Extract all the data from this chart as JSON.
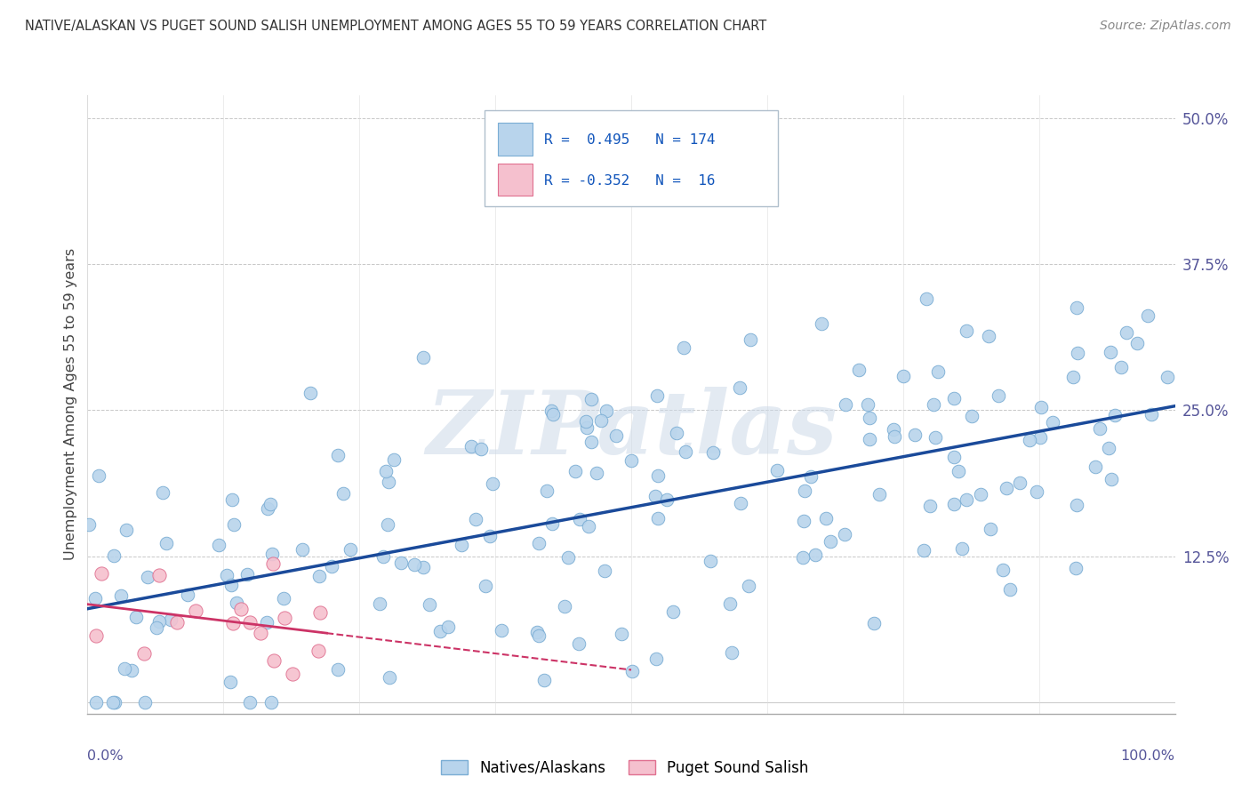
{
  "title": "NATIVE/ALASKAN VS PUGET SOUND SALISH UNEMPLOYMENT AMONG AGES 55 TO 59 YEARS CORRELATION CHART",
  "source": "Source: ZipAtlas.com",
  "ylabel": "Unemployment Among Ages 55 to 59 years",
  "xlim": [
    0.0,
    1.0
  ],
  "ylim": [
    -0.01,
    0.52
  ],
  "blue_R": 0.495,
  "blue_N": 174,
  "pink_R": -0.352,
  "pink_N": 16,
  "blue_color": "#b8d4ec",
  "blue_edge": "#7aadd4",
  "pink_color": "#f5c0ce",
  "pink_edge": "#e07090",
  "blue_line_color": "#1a4a9a",
  "pink_line_color": "#cc3366",
  "background_color": "#ffffff",
  "grid_color": "#c8c8c8",
  "watermark": "ZIPatlas",
  "title_color": "#333333",
  "source_color": "#888888",
  "tick_color": "#555599"
}
